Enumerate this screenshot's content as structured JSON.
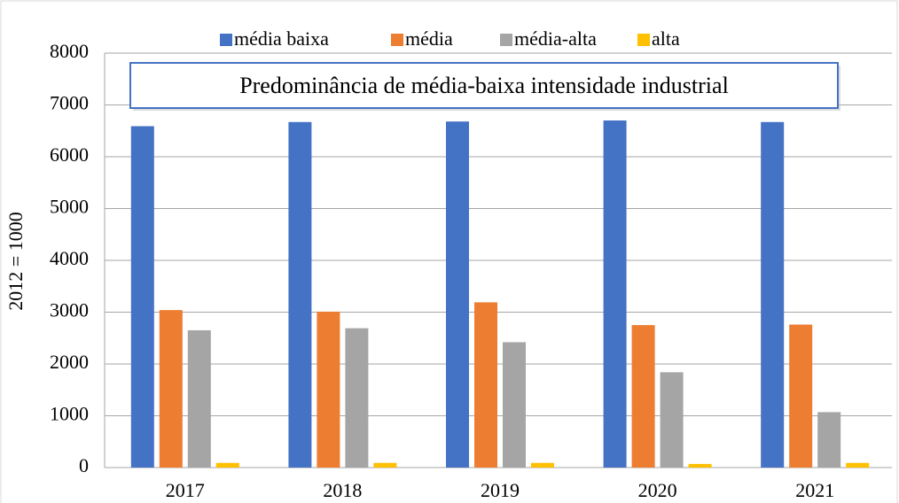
{
  "chart_data": {
    "type": "bar",
    "annotation": "Predominância de média-baixa intensidade industrial",
    "y_label": "2012 = 1000",
    "categories": [
      "2017",
      "2018",
      "2019",
      "2020",
      "2021"
    ],
    "series": [
      {
        "name": "média baixa",
        "color": "#4472c4",
        "values": [
          6590,
          6670,
          6680,
          6700,
          6670
        ]
      },
      {
        "name": "média",
        "color": "#ed7d31",
        "values": [
          3040,
          3010,
          3190,
          2750,
          2760
        ]
      },
      {
        "name": "média-alta",
        "color": "#a5a5a5",
        "values": [
          2650,
          2690,
          2420,
          1840,
          1070
        ]
      },
      {
        "name": "alta",
        "color": "#ffc000",
        "values": [
          90,
          90,
          90,
          70,
          90
        ]
      }
    ],
    "ylim": [
      0,
      8000
    ],
    "yticks": [
      0,
      1000,
      2000,
      3000,
      4000,
      5000,
      6000,
      7000,
      8000
    ],
    "grid": true,
    "legend": "top"
  }
}
